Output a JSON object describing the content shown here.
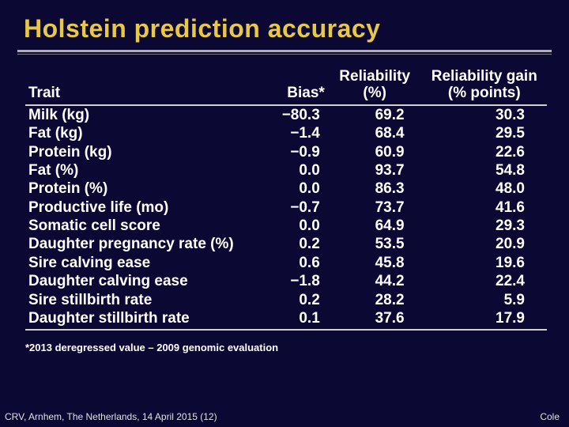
{
  "title": "Holstein prediction accuracy",
  "headers": {
    "trait": "Trait",
    "bias": "Bias*",
    "rel_p": "Reliability (%)",
    "rel_g": "Reliability gain (% points)"
  },
  "rows1": [
    {
      "trait": "Milk (kg)",
      "bias": "−80.3",
      "relp": "69.2",
      "relg": "30.3"
    },
    {
      "trait": "Fat (kg)",
      "bias": "−1.4",
      "relp": "68.4",
      "relg": "29.5"
    },
    {
      "trait": "Protein (kg)",
      "bias": "−0.9",
      "relp": "60.9",
      "relg": "22.6"
    },
    {
      "trait": "Fat (%)",
      "bias": "0.0",
      "relp": "93.7",
      "relg": "54.8"
    },
    {
      "trait": "Protein (%)",
      "bias": "0.0",
      "relp": "86.3",
      "relg": "48.0"
    },
    {
      "trait": "Productive life (mo)",
      "bias": "−0.7",
      "relp": "73.7",
      "relg": "41.6"
    },
    {
      "trait": "Somatic cell score",
      "bias": "0.0",
      "relp": "64.9",
      "relg": "29.3"
    },
    {
      "trait": "Daughter pregnancy rate (%)",
      "bias": "0.2",
      "relp": "53.5",
      "relg": "20.9"
    }
  ],
  "rows2": [
    {
      "trait": "Sire calving ease",
      "bias": "0.6",
      "relp": "45.8",
      "relg": "19.6"
    },
    {
      "trait": "Daughter calving ease",
      "bias": "−1.8",
      "relp": "44.2",
      "relg": "22.4"
    },
    {
      "trait": "Sire stillbirth rate",
      "bias": "0.2",
      "relp": "28.2",
      "relg": "5.9"
    },
    {
      "trait": "Daughter stillbirth rate",
      "bias": "0.1",
      "relp": "37.6",
      "relg": "17.9"
    }
  ],
  "footnote": "*2013 deregressed value – 2009 genomic evaluation",
  "footer_left": "CRV, Arnhem, The Netherlands, 14 April 2015 (12)",
  "footer_right": "Cole",
  "style": {
    "background_color": "#0c0834",
    "title_color": "#e8c848",
    "text_color": "#ffffff",
    "rule_color": "#b0b0b0",
    "title_fontsize": 32,
    "table_fontsize": 19,
    "footnote_fontsize": 13,
    "footer_fontsize": 12
  }
}
